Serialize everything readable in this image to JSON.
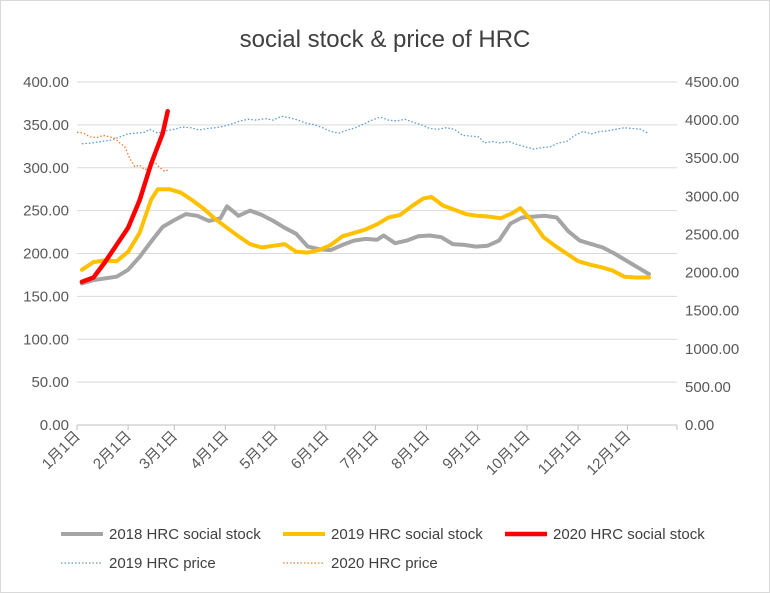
{
  "chart_data": {
    "type": "line",
    "title": "social stock & price of HRC",
    "xlabel": "",
    "ylabel": "",
    "x_ticks": [
      "1月1日",
      "2月1日",
      "3月1日",
      "4月1日",
      "5月1日",
      "6月1日",
      "7月1日",
      "8月1日",
      "9月1日",
      "10月1日",
      "11月1日",
      "12月1日"
    ],
    "x_range": [
      1,
      365
    ],
    "y_left": {
      "min": 0,
      "max": 400,
      "step": 50,
      "tick_labels": [
        "0.00",
        "50.00",
        "100.00",
        "150.00",
        "200.00",
        "250.00",
        "300.00",
        "350.00",
        "400.00"
      ]
    },
    "y_right": {
      "min": 0,
      "max": 4500,
      "step": 500,
      "tick_labels": [
        "0.00",
        "500.00",
        "1000.00",
        "1500.00",
        "2000.00",
        "2500.00",
        "3000.00",
        "3500.00",
        "4000.00",
        "4500.00"
      ]
    },
    "grid": "horizontal",
    "legend_position": "bottom",
    "series": [
      {
        "name": "2018 HRC social stock",
        "axis": "left",
        "style": "solid-thick",
        "color": "#a5a5a5",
        "points": [
          [
            4,
            165
          ],
          [
            11,
            169
          ],
          [
            18,
            171
          ],
          [
            25,
            173
          ],
          [
            32,
            181
          ],
          [
            39,
            196
          ],
          [
            46,
            214
          ],
          [
            53,
            231
          ],
          [
            60,
            239
          ],
          [
            67,
            246
          ],
          [
            74,
            244
          ],
          [
            81,
            238
          ],
          [
            88,
            241
          ],
          [
            92,
            255
          ],
          [
            99,
            244
          ],
          [
            106,
            250
          ],
          [
            113,
            245
          ],
          [
            120,
            238
          ],
          [
            127,
            230
          ],
          [
            134,
            223
          ],
          [
            141,
            208
          ],
          [
            148,
            205
          ],
          [
            155,
            204
          ],
          [
            162,
            210
          ],
          [
            169,
            215
          ],
          [
            176,
            217
          ],
          [
            183,
            216
          ],
          [
            187,
            221
          ],
          [
            194,
            212
          ],
          [
            201,
            215
          ],
          [
            208,
            220
          ],
          [
            215,
            221
          ],
          [
            222,
            219
          ],
          [
            229,
            211
          ],
          [
            236,
            210
          ],
          [
            243,
            208
          ],
          [
            250,
            209
          ],
          [
            257,
            215
          ],
          [
            264,
            235
          ],
          [
            271,
            242
          ],
          [
            278,
            243
          ],
          [
            285,
            244
          ],
          [
            292,
            242
          ],
          [
            299,
            226
          ],
          [
            306,
            215
          ],
          [
            313,
            211
          ],
          [
            320,
            207
          ],
          [
            327,
            200
          ],
          [
            334,
            192
          ],
          [
            341,
            184
          ],
          [
            348,
            176
          ]
        ]
      },
      {
        "name": "2019 HRC social stock",
        "axis": "left",
        "style": "solid-thick",
        "color": "#ffc000",
        "points": [
          [
            4,
            181
          ],
          [
            11,
            190
          ],
          [
            18,
            192
          ],
          [
            25,
            191
          ],
          [
            32,
            202
          ],
          [
            39,
            224
          ],
          [
            46,
            263
          ],
          [
            50,
            275
          ],
          [
            57,
            275
          ],
          [
            64,
            271
          ],
          [
            71,
            262
          ],
          [
            78,
            252
          ],
          [
            85,
            240
          ],
          [
            92,
            230
          ],
          [
            99,
            220
          ],
          [
            106,
            211
          ],
          [
            113,
            207
          ],
          [
            120,
            209
          ],
          [
            127,
            211
          ],
          [
            134,
            202
          ],
          [
            141,
            201
          ],
          [
            148,
            204
          ],
          [
            155,
            210
          ],
          [
            162,
            220
          ],
          [
            169,
            224
          ],
          [
            176,
            228
          ],
          [
            183,
            234
          ],
          [
            190,
            242
          ],
          [
            197,
            245
          ],
          [
            204,
            255
          ],
          [
            211,
            264
          ],
          [
            216,
            266
          ],
          [
            223,
            256
          ],
          [
            230,
            251
          ],
          [
            237,
            246
          ],
          [
            244,
            244
          ],
          [
            251,
            243
          ],
          [
            258,
            241
          ],
          [
            265,
            247
          ],
          [
            270,
            253
          ],
          [
            277,
            238
          ],
          [
            284,
            219
          ],
          [
            291,
            209
          ],
          [
            298,
            200
          ],
          [
            305,
            191
          ],
          [
            312,
            187
          ],
          [
            319,
            184
          ],
          [
            326,
            180
          ],
          [
            333,
            173
          ],
          [
            340,
            172
          ],
          [
            348,
            172
          ]
        ]
      },
      {
        "name": "2020 HRC social stock",
        "axis": "left",
        "style": "solid-thicker",
        "color": "#ff0000",
        "points": [
          [
            4,
            167
          ],
          [
            11,
            172
          ],
          [
            18,
            190
          ],
          [
            25,
            210
          ],
          [
            32,
            230
          ],
          [
            39,
            262
          ],
          [
            46,
            305
          ],
          [
            53,
            340
          ],
          [
            56,
            366
          ]
        ]
      },
      {
        "name": "2019 HRC price",
        "axis": "right",
        "style": "dotted",
        "color": "#5b9bd5",
        "points": [
          [
            4,
            3690
          ],
          [
            10,
            3700
          ],
          [
            16,
            3720
          ],
          [
            22,
            3740
          ],
          [
            27,
            3780
          ],
          [
            32,
            3820
          ],
          [
            37,
            3830
          ],
          [
            42,
            3840
          ],
          [
            45,
            3880
          ],
          [
            50,
            3830
          ],
          [
            55,
            3860
          ],
          [
            60,
            3880
          ],
          [
            65,
            3910
          ],
          [
            70,
            3900
          ],
          [
            75,
            3870
          ],
          [
            80,
            3890
          ],
          [
            85,
            3900
          ],
          [
            90,
            3920
          ],
          [
            95,
            3950
          ],
          [
            100,
            3990
          ],
          [
            105,
            4010
          ],
          [
            110,
            4000
          ],
          [
            115,
            4020
          ],
          [
            120,
            4000
          ],
          [
            125,
            4050
          ],
          [
            130,
            4030
          ],
          [
            135,
            4000
          ],
          [
            140,
            3960
          ],
          [
            145,
            3940
          ],
          [
            150,
            3900
          ],
          [
            155,
            3850
          ],
          [
            160,
            3830
          ],
          [
            165,
            3870
          ],
          [
            170,
            3900
          ],
          [
            175,
            3950
          ],
          [
            180,
            4000
          ],
          [
            185,
            4040
          ],
          [
            190,
            4000
          ],
          [
            195,
            3990
          ],
          [
            200,
            4010
          ],
          [
            205,
            3970
          ],
          [
            210,
            3940
          ],
          [
            215,
            3890
          ],
          [
            220,
            3880
          ],
          [
            225,
            3900
          ],
          [
            230,
            3880
          ],
          [
            235,
            3800
          ],
          [
            240,
            3790
          ],
          [
            245,
            3780
          ],
          [
            248,
            3700
          ],
          [
            253,
            3720
          ],
          [
            258,
            3700
          ],
          [
            263,
            3720
          ],
          [
            268,
            3680
          ],
          [
            273,
            3650
          ],
          [
            278,
            3620
          ],
          [
            283,
            3640
          ],
          [
            288,
            3650
          ],
          [
            293,
            3700
          ],
          [
            298,
            3720
          ],
          [
            303,
            3800
          ],
          [
            308,
            3850
          ],
          [
            313,
            3820
          ],
          [
            318,
            3850
          ],
          [
            323,
            3860
          ],
          [
            328,
            3880
          ],
          [
            333,
            3900
          ],
          [
            338,
            3890
          ],
          [
            343,
            3880
          ],
          [
            348,
            3820
          ]
        ]
      },
      {
        "name": "2020 HRC price",
        "axis": "right",
        "style": "dotted",
        "color": "#ed7d31",
        "points": [
          [
            1,
            3840
          ],
          [
            5,
            3830
          ],
          [
            9,
            3780
          ],
          [
            13,
            3770
          ],
          [
            17,
            3800
          ],
          [
            21,
            3780
          ],
          [
            24,
            3760
          ],
          [
            27,
            3700
          ],
          [
            30,
            3650
          ],
          [
            33,
            3500
          ],
          [
            36,
            3390
          ],
          [
            39,
            3410
          ],
          [
            42,
            3350
          ],
          [
            45,
            3370
          ],
          [
            48,
            3450
          ],
          [
            51,
            3380
          ],
          [
            54,
            3330
          ],
          [
            57,
            3350
          ]
        ]
      }
    ]
  }
}
